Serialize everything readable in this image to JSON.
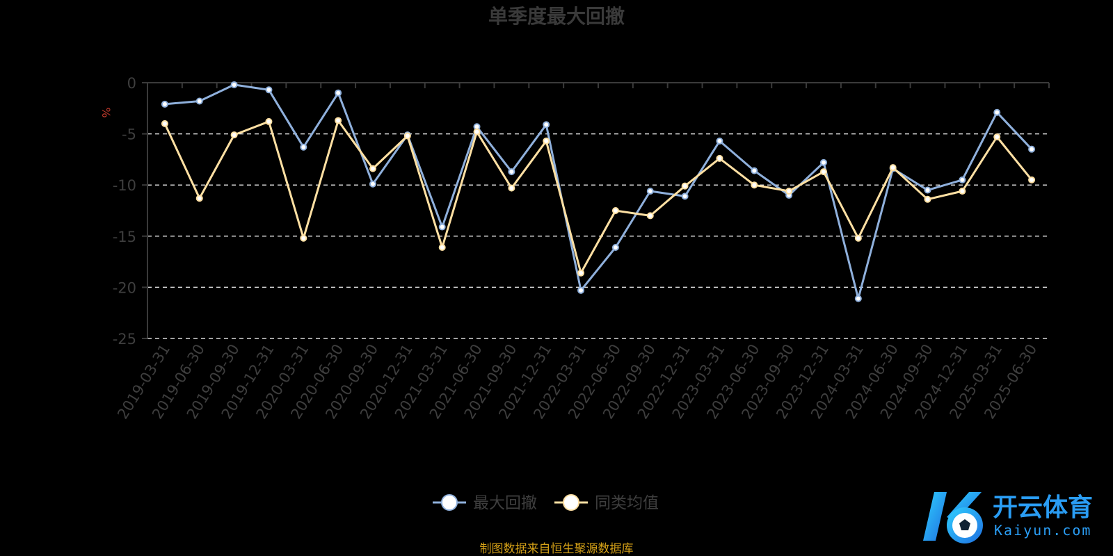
{
  "chart_data": {
    "type": "line",
    "title": "单季度最大回撤",
    "ylabel": "%",
    "ylim": [
      -25,
      0
    ],
    "yticks": [
      0,
      -5,
      -10,
      -15,
      -20,
      -25
    ],
    "grid": true,
    "legend_position": "bottom-center",
    "categories": [
      "2019-03-31",
      "2019-06-30",
      "2019-09-30",
      "2019-12-31",
      "2020-03-31",
      "2020-06-30",
      "2020-09-30",
      "2020-12-31",
      "2021-03-31",
      "2021-06-30",
      "2021-09-30",
      "2021-12-31",
      "2022-03-31",
      "2022-06-30",
      "2022-09-30",
      "2022-12-31",
      "2023-03-31",
      "2023-06-30",
      "2023-09-30",
      "2023-12-31",
      "2024-03-31",
      "2024-06-30",
      "2024-09-30",
      "2024-12-31",
      "2025-03-31",
      "2025-06-30"
    ],
    "series": [
      {
        "name": "最大回撤",
        "color": "#8fb0dc",
        "values": [
          -2.1,
          -1.8,
          -0.2,
          -0.7,
          -6.3,
          -1.0,
          -9.9,
          -5.1,
          -14.1,
          -4.3,
          -8.7,
          -4.1,
          -20.3,
          -16.1,
          -10.6,
          -11.1,
          -5.7,
          -8.6,
          -11.0,
          -7.8,
          -21.1,
          -8.4,
          -10.5,
          -9.5,
          -2.9,
          -6.5
        ]
      },
      {
        "name": "同类均值",
        "color": "#ffe0a3",
        "values": [
          -4.0,
          -11.3,
          -5.1,
          -3.8,
          -15.2,
          -3.7,
          -8.4,
          -5.2,
          -16.1,
          -4.8,
          -10.3,
          -5.7,
          -18.6,
          -12.5,
          -13.0,
          -10.1,
          -7.4,
          -10.0,
          -10.6,
          -8.7,
          -15.2,
          -8.3,
          -11.4,
          -10.6,
          -5.3,
          -9.5
        ]
      }
    ],
    "source_note": "制图数据来自恒生聚源数据库"
  },
  "watermark": {
    "brand_text": "开云体育",
    "domain_text": "Kaiyun.com"
  }
}
